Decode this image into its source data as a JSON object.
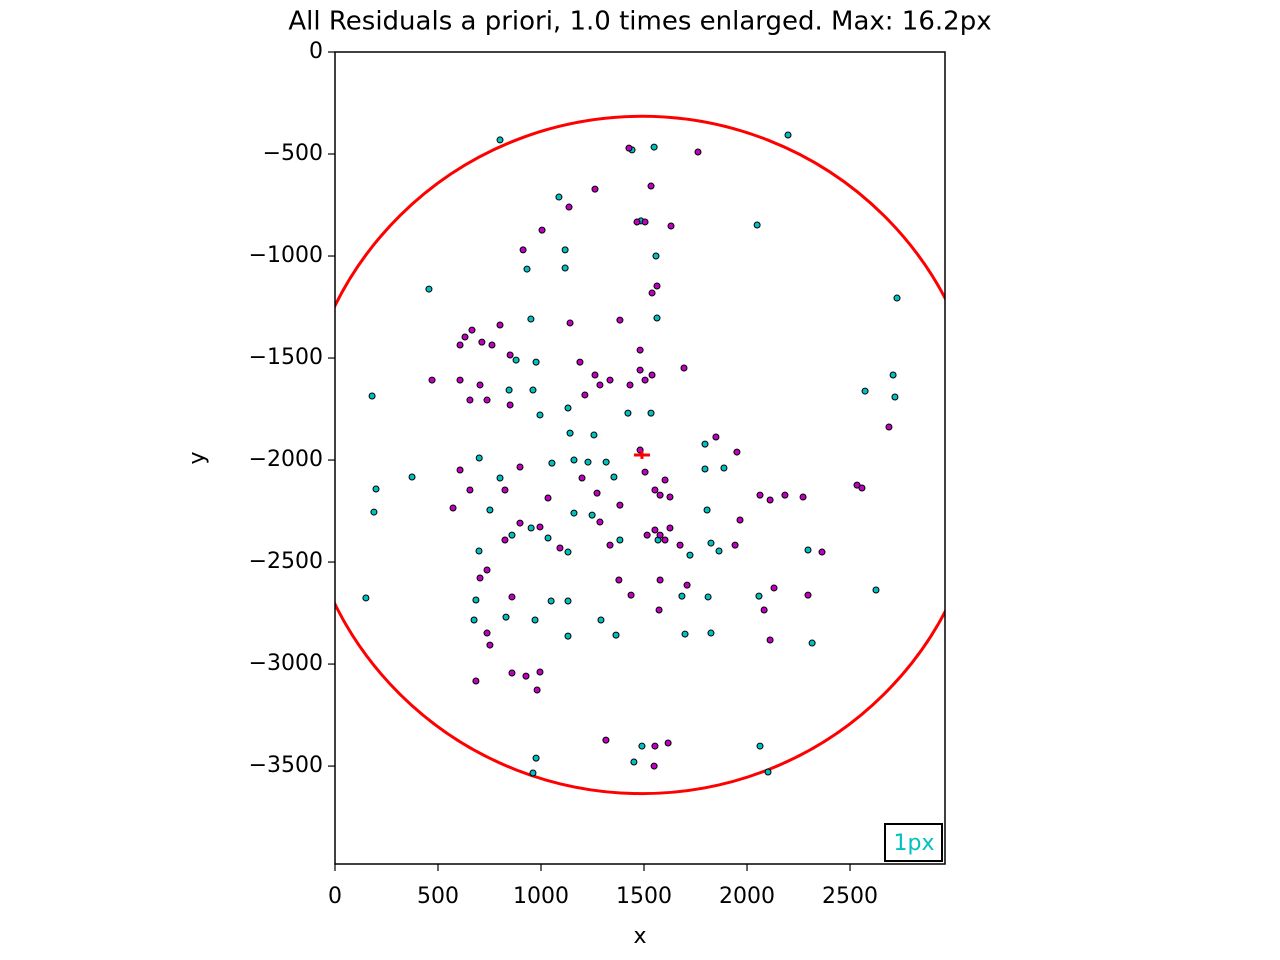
{
  "chart_data": {
    "type": "scatter",
    "title": "All Residuals a priori, 1.0 times enlarged. Max: 16.2px",
    "xlabel": "x",
    "ylabel": "y",
    "xlim": [
      0,
      2961
    ],
    "ylim": [
      -3980,
      0
    ],
    "xticks": [
      0,
      500,
      1000,
      1500,
      2000,
      2500
    ],
    "yticks": [
      0,
      {
        "value": -500,
        "label": "−500"
      },
      {
        "value": -1000,
        "label": "−1000"
      },
      {
        "value": -1500,
        "label": "−1500"
      },
      {
        "value": -2000,
        "label": "−2000"
      },
      {
        "value": -2500,
        "label": "−2500"
      },
      {
        "value": -3000,
        "label": "−3000"
      },
      {
        "value": -3500,
        "label": "−3500"
      }
    ],
    "circle": {
      "center": [
        1490,
        -1975
      ],
      "radius": 1660,
      "color": "#ff0000"
    },
    "scale_label": "1px",
    "scale_label_color": "#00c0c0",
    "series": [
      {
        "color": "#00c0c0",
        "x": [
          801,
          1549,
          2049,
          2199,
          2728,
          456,
          932,
          1117,
          1117,
          1087,
          1558,
          1563,
          951,
          180,
          2573,
          2709,
          2718,
          374,
          199,
          189,
          150,
          2626,
          2296,
          2316,
          2102,
          2063,
          976,
          961,
          1490,
          1451,
          2058,
          1796,
          1796,
          1888,
          1825,
          1806,
          1684,
          1811,
          1825,
          1699,
          1364,
          1291,
          1131,
          1131,
          1049,
          971,
          830,
          684,
          675,
          879,
          976,
          961,
          845,
          995,
          1131,
          1141,
          1257,
          1053,
          1160,
          1228,
          1316,
          1354,
          700,
          801,
          752,
          699,
          859,
          952,
          1034,
          1131,
          1160,
          1248,
          1383,
          1422,
          1534,
          1568,
          1723,
          1864,
          1485,
          1442
        ],
        "y": [
          -431,
          -466,
          -848,
          -407,
          -1206,
          -1162,
          -1064,
          -1059,
          -970,
          -711,
          -1000,
          -1304,
          -1309,
          -1686,
          -1662,
          -1583,
          -1691,
          -2083,
          -2142,
          -2255,
          -2676,
          -2637,
          -2441,
          -2897,
          -3529,
          -3402,
          -3461,
          -3534,
          -3402,
          -3480,
          -2667,
          -1922,
          -2044,
          -2039,
          -2407,
          -2245,
          -2667,
          -2671,
          -2848,
          -2853,
          -2858,
          -2784,
          -2863,
          -2691,
          -2691,
          -2784,
          -2770,
          -2686,
          -2784,
          -1510,
          -1520,
          -1657,
          -1657,
          -1779,
          -1745,
          -1868,
          -1877,
          -2015,
          -2000,
          -2010,
          -2010,
          -2083,
          -1990,
          -2088,
          -2245,
          -2446,
          -2368,
          -2333,
          -2382,
          -2451,
          -2260,
          -2270,
          -2392,
          -1770,
          -1770,
          -2392,
          -2466,
          -2446,
          -828,
          -480
        ]
      },
      {
        "color": "#c000c0",
        "x": [
          1762,
          1427,
          1262,
          1136,
          1534,
          1466,
          1505,
          1631,
          1539,
          1563,
          1383,
          1141,
          801,
          631,
          665,
          713,
          762,
          607,
          850,
          471,
          607,
          704,
          738,
          655,
          850,
          1189,
          1262,
          1286,
          1335,
          1213,
          1481,
          1505,
          1539,
          1432,
          1481,
          1694,
          1553,
          1578,
          1602,
          1626,
          1505,
          1481,
          1553,
          1578,
          1602,
          1626,
          1515,
          1675,
          1578,
          1709,
          1573,
          1942,
          1966,
          2063,
          2112,
          2184,
          2272,
          2364,
          2534,
          2558,
          2131,
          2083,
          2112,
          2296,
          1951,
          1849,
          2689,
          1272,
          1199,
          1034,
          898,
          825,
          655,
          607,
          573,
          825,
          898,
          995,
          1092,
          1286,
          1335,
          1383,
          738,
          704,
          859,
          738,
          752,
          859,
          927,
          995,
          981,
          684,
          1315,
          1553,
          1617,
          1549,
          1005,
          913,
          1378,
          1437
        ],
        "y": [
          -490,
          -471,
          -672,
          -760,
          -657,
          -833,
          -833,
          -853,
          -1181,
          -1147,
          -1314,
          -1328,
          -1338,
          -1397,
          -1363,
          -1422,
          -1436,
          -1436,
          -1485,
          -1608,
          -1608,
          -1632,
          -1706,
          -1706,
          -1730,
          -1520,
          -1583,
          -1632,
          -1608,
          -1681,
          -1559,
          -1608,
          -1583,
          -1632,
          -1461,
          -1549,
          -2147,
          -2172,
          -2098,
          -2181,
          -2059,
          -1951,
          -2343,
          -2368,
          -2392,
          -2333,
          -2368,
          -2417,
          -2588,
          -2613,
          -2735,
          -2417,
          -2294,
          -2172,
          -2196,
          -2172,
          -2181,
          -2451,
          -2123,
          -2137,
          -2627,
          -2735,
          -2882,
          -2662,
          -1961,
          -1887,
          -1838,
          -2162,
          -2088,
          -2186,
          -2034,
          -2147,
          -2147,
          -2049,
          -2235,
          -2392,
          -2309,
          -2328,
          -2431,
          -2304,
          -2417,
          -2221,
          -2539,
          -2578,
          -2671,
          -2848,
          -2907,
          -3044,
          -3059,
          -3039,
          -3127,
          -3083,
          -3373,
          -3402,
          -3387,
          -3500,
          -873,
          -970,
          -2588,
          -2662
        ]
      }
    ]
  }
}
